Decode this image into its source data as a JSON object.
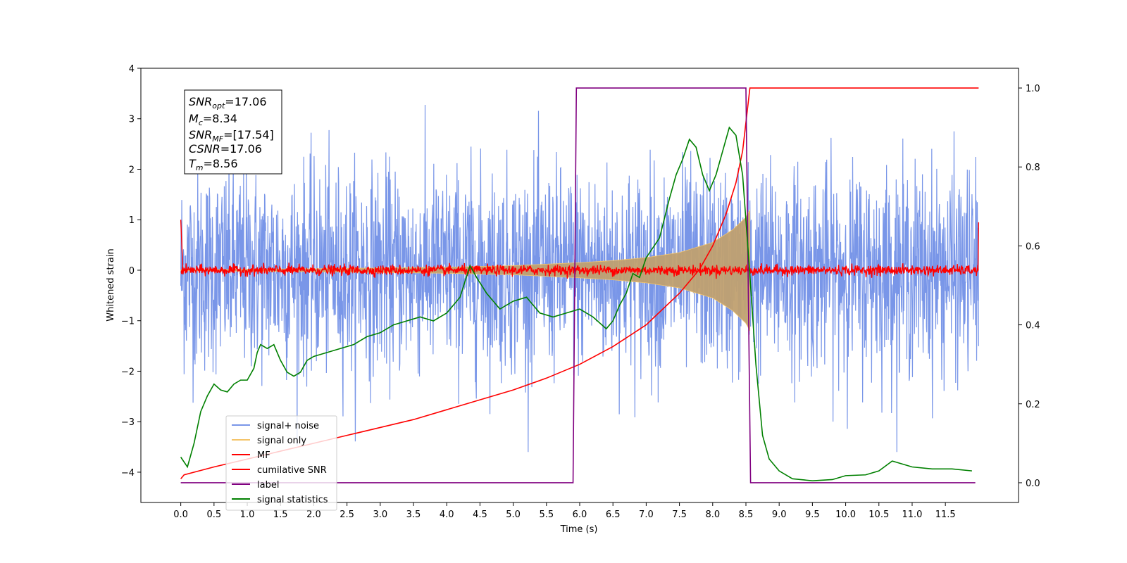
{
  "chart_data": {
    "type": "line",
    "xlabel": "Time (s)",
    "ylabel": "Whitened strain",
    "xlim": [
      -0.6,
      12.6
    ],
    "ylim": [
      -4.6,
      4.0
    ],
    "y2lim": [
      -0.05,
      1.05
    ],
    "x_ticks": [
      "0.0",
      "0.5",
      "1.0",
      "1.5",
      "2.0",
      "2.5",
      "3.0",
      "3.5",
      "4.0",
      "4.5",
      "5.0",
      "5.5",
      "6.0",
      "6.5",
      "7.0",
      "7.5",
      "8.0",
      "8.5",
      "9.0",
      "9.5",
      "10.0",
      "10.5",
      "11.0",
      "11.5"
    ],
    "y_ticks": [
      "4",
      "3",
      "2",
      "1",
      "0",
      "−1",
      "−2",
      "−3",
      "−4"
    ],
    "y2_ticks": [
      "1.0",
      "0.8",
      "0.6",
      "0.4",
      "0.2",
      "0.0"
    ],
    "legend_location": "lower-left",
    "annotation": {
      "snr_opt": {
        "sym": "SNR",
        "sub": "opt",
        "value": "=17.06"
      },
      "mc": {
        "sym": "M",
        "sub": "c",
        "value": "=8.34"
      },
      "snr_mf": {
        "sym": "SNR",
        "sub": "MF",
        "value": "=[17.54]"
      },
      "csnr": {
        "sym": "CSNR",
        "value": "=17.06"
      },
      "tm": {
        "sym": "T",
        "sub": "m",
        "value": "=8.56"
      }
    },
    "series": [
      {
        "name": "signal+ noise",
        "color": "#6a8be6",
        "axis": "left",
        "style": "noise",
        "x_range": [
          0.0,
          12.0
        ],
        "amplitude": 3.2,
        "sigma": 1.0,
        "spike_max": 3.6,
        "spike_min": -3.6
      },
      {
        "name": "signal only",
        "color": "#f4c46a",
        "axis": "left",
        "style": "chirp",
        "x_range": [
          0.0,
          8.56
        ],
        "envelope": [
          [
            0.0,
            0.01
          ],
          [
            2.0,
            0.03
          ],
          [
            4.0,
            0.06
          ],
          [
            5.0,
            0.09
          ],
          [
            6.0,
            0.15
          ],
          [
            6.5,
            0.19
          ],
          [
            7.0,
            0.25
          ],
          [
            7.5,
            0.35
          ],
          [
            8.0,
            0.55
          ],
          [
            8.3,
            0.8
          ],
          [
            8.5,
            1.05
          ],
          [
            8.56,
            1.2
          ]
        ]
      },
      {
        "name": "MF",
        "color": "#ff0000",
        "axis": "left",
        "style": "mf",
        "x_range": [
          0.0,
          12.0
        ],
        "amplitude": 0.1,
        "edge_value": 1.0
      },
      {
        "name": "cumilative SNR",
        "color": "#ff0000",
        "axis": "right",
        "x": [
          0.0,
          0.05,
          0.5,
          1.0,
          1.5,
          2.0,
          2.5,
          3.0,
          3.5,
          4.0,
          4.5,
          5.0,
          5.5,
          6.0,
          6.5,
          7.0,
          7.5,
          7.8,
          8.0,
          8.2,
          8.35,
          8.45,
          8.56,
          12.0
        ],
        "y": [
          0.01,
          0.02,
          0.04,
          0.06,
          0.08,
          0.1,
          0.12,
          0.14,
          0.16,
          0.185,
          0.21,
          0.235,
          0.265,
          0.3,
          0.345,
          0.4,
          0.48,
          0.54,
          0.6,
          0.68,
          0.76,
          0.84,
          1.0,
          1.0
        ]
      },
      {
        "name": "label",
        "color": "#800080",
        "axis": "right",
        "x": [
          0.0,
          5.9,
          5.95,
          8.5,
          8.57,
          11.95
        ],
        "y": [
          0.0,
          0.0,
          1.0,
          1.0,
          0.0,
          0.0
        ]
      },
      {
        "name": "signal statistics",
        "color": "#008000",
        "axis": "right",
        "x": [
          0.0,
          0.1,
          0.2,
          0.3,
          0.4,
          0.5,
          0.6,
          0.7,
          0.8,
          0.9,
          1.0,
          1.1,
          1.15,
          1.2,
          1.3,
          1.4,
          1.5,
          1.6,
          1.7,
          1.8,
          1.9,
          2.0,
          2.2,
          2.4,
          2.6,
          2.8,
          3.0,
          3.2,
          3.4,
          3.6,
          3.8,
          4.0,
          4.2,
          4.35,
          4.45,
          4.6,
          4.8,
          5.0,
          5.2,
          5.4,
          5.6,
          5.8,
          6.0,
          6.2,
          6.4,
          6.5,
          6.6,
          6.7,
          6.8,
          6.9,
          7.0,
          7.2,
          7.35,
          7.45,
          7.55,
          7.65,
          7.75,
          7.85,
          7.95,
          8.05,
          8.15,
          8.25,
          8.35,
          8.45,
          8.55,
          8.65,
          8.75,
          8.85,
          9.0,
          9.2,
          9.5,
          9.8,
          10.0,
          10.3,
          10.5,
          10.7,
          11.0,
          11.3,
          11.6,
          11.9
        ],
        "y": [
          0.065,
          0.04,
          0.1,
          0.18,
          0.22,
          0.25,
          0.235,
          0.23,
          0.25,
          0.26,
          0.26,
          0.29,
          0.33,
          0.35,
          0.34,
          0.35,
          0.31,
          0.28,
          0.27,
          0.28,
          0.31,
          0.32,
          0.33,
          0.34,
          0.35,
          0.37,
          0.38,
          0.4,
          0.41,
          0.42,
          0.41,
          0.43,
          0.47,
          0.55,
          0.52,
          0.48,
          0.44,
          0.46,
          0.47,
          0.43,
          0.42,
          0.43,
          0.44,
          0.42,
          0.39,
          0.41,
          0.45,
          0.48,
          0.53,
          0.52,
          0.57,
          0.62,
          0.72,
          0.78,
          0.82,
          0.87,
          0.85,
          0.78,
          0.74,
          0.78,
          0.84,
          0.9,
          0.88,
          0.78,
          0.55,
          0.3,
          0.12,
          0.06,
          0.03,
          0.01,
          0.005,
          0.008,
          0.018,
          0.02,
          0.03,
          0.055,
          0.04,
          0.035,
          0.035,
          0.03
        ]
      }
    ]
  }
}
